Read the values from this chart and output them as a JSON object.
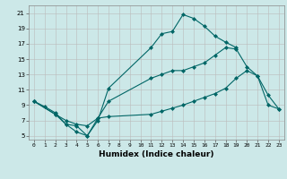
{
  "xlabel": "Humidex (Indice chaleur)",
  "background_color": "#cce8e8",
  "grid_color": "#bbbbbb",
  "line_color": "#006666",
  "xlim": [
    -0.5,
    23.5
  ],
  "ylim": [
    4.5,
    22.0
  ],
  "yticks": [
    5,
    7,
    9,
    11,
    13,
    15,
    17,
    19,
    21
  ],
  "xticks": [
    0,
    1,
    2,
    3,
    4,
    5,
    6,
    7,
    8,
    9,
    10,
    11,
    12,
    13,
    14,
    15,
    16,
    17,
    18,
    19,
    20,
    21,
    22,
    23
  ],
  "series": [
    {
      "x": [
        0,
        1,
        2,
        3,
        4,
        5,
        6,
        7,
        11,
        12,
        13,
        14,
        15,
        16,
        17,
        18,
        19
      ],
      "y": [
        9.5,
        8.8,
        8.0,
        6.5,
        5.5,
        5.0,
        7.0,
        11.2,
        16.5,
        18.3,
        18.6,
        20.8,
        20.3,
        19.3,
        18.0,
        17.2,
        16.5
      ]
    },
    {
      "x": [
        0,
        2,
        3,
        4,
        5,
        6,
        7,
        11,
        12,
        13,
        14,
        15,
        16,
        17,
        18,
        19,
        20,
        21,
        22,
        23
      ],
      "y": [
        9.5,
        7.8,
        7.0,
        6.5,
        6.3,
        7.3,
        9.5,
        12.5,
        13.0,
        13.5,
        13.5,
        14.0,
        14.5,
        15.5,
        16.5,
        16.3,
        14.0,
        12.8,
        9.0,
        8.5
      ]
    },
    {
      "x": [
        0,
        2,
        3,
        4,
        5,
        6,
        7,
        11,
        12,
        13,
        14,
        15,
        16,
        17,
        18,
        19,
        20,
        21,
        22,
        23
      ],
      "y": [
        9.5,
        7.8,
        6.5,
        6.3,
        5.0,
        7.3,
        7.5,
        7.8,
        8.2,
        8.6,
        9.0,
        9.5,
        10.0,
        10.5,
        11.2,
        12.5,
        13.5,
        12.8,
        10.3,
        8.5
      ]
    }
  ]
}
